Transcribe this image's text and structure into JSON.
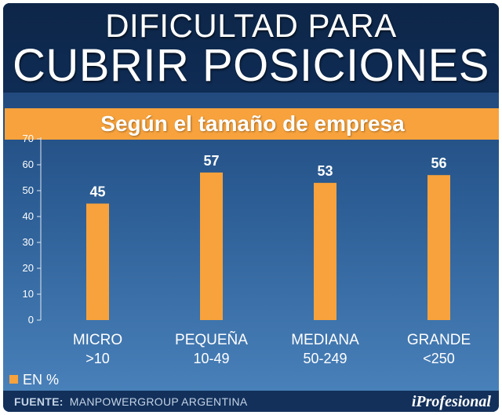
{
  "header": {
    "title_line1": "DIFICULTAD PARA",
    "title_line2": "CUBRIR POSICIONES"
  },
  "chart_data": {
    "type": "bar",
    "subtitle": "Según el tamaño de empresa",
    "categories": [
      {
        "name": "MICRO",
        "range": ">10"
      },
      {
        "name": "PEQUEÑA",
        "range": "10-49"
      },
      {
        "name": "MEDIANA",
        "range": "50-249"
      },
      {
        "name": "GRANDE",
        "range": "<250"
      }
    ],
    "values": [
      45,
      57,
      53,
      56
    ],
    "data_labels": [
      "45",
      "57",
      "53",
      "56"
    ],
    "ylim": [
      0,
      70
    ],
    "yticks": [
      "0",
      "10",
      "20",
      "30",
      "40",
      "50",
      "60",
      "70"
    ],
    "legend": "EN %",
    "bar_color": "#f7a23c"
  },
  "footer": {
    "source_label": "FUENTE:",
    "source_text": "MANPOWERGROUP ARGENTINA",
    "brand": "iProfesional"
  }
}
